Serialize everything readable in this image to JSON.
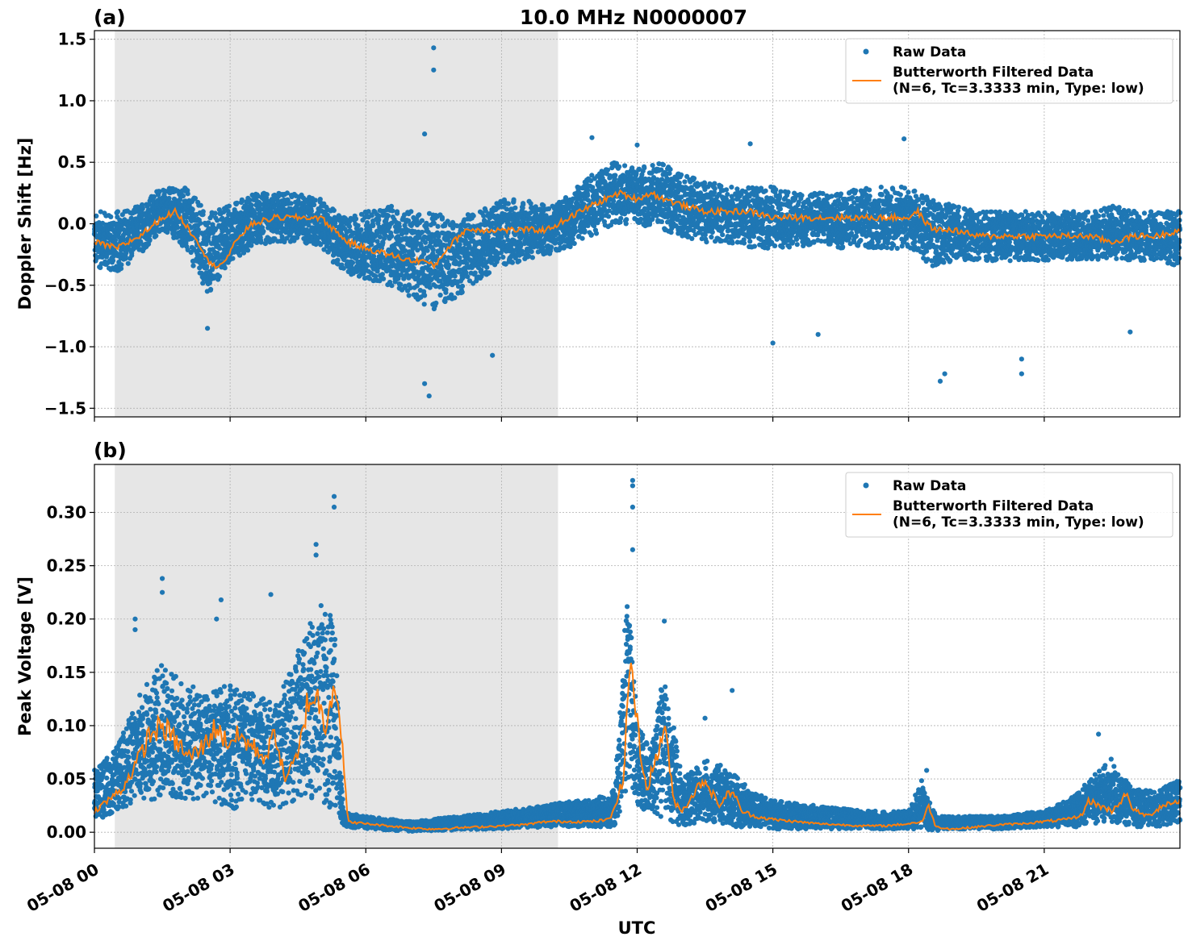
{
  "figure": {
    "title": "10.0 MHz N0000007",
    "xlabel": "UTC"
  },
  "colors": {
    "raw": "#1f77b4",
    "filtered": "#ff7f0e",
    "night_shade": "#e6e6e6",
    "grid": "#b0b0b0"
  },
  "chart_data": [
    {
      "panel": "(a)",
      "type": "scatter",
      "ylabel": "Doppler Shift [Hz]",
      "xlim": [
        "05-08 00:00",
        "05-08 24:00"
      ],
      "ylim": [
        -1.57,
        1.57
      ],
      "yticks": [
        -1.5,
        -1.0,
        -0.5,
        0.0,
        0.5,
        1.0,
        1.5
      ],
      "ytick_labels": [
        "−1.5",
        "−1.0",
        "−0.5",
        "0.0",
        "0.5",
        "1.0",
        "1.5"
      ],
      "xticks_hours": [
        0,
        3,
        6,
        9,
        12,
        15,
        18,
        21
      ],
      "xtick_labels": [
        "05-08 00",
        "05-08 03",
        "05-08 06",
        "05-08 09",
        "05-08 12",
        "05-08 15",
        "05-08 18",
        "05-08 21"
      ],
      "grid": true,
      "legend_position": "top-right",
      "legend": [
        "Raw Data",
        "Butterworth Filtered Data",
        "(N=6, Tc=3.3333 min, Type: low)"
      ],
      "shaded_region_hours": [
        0.45,
        10.25
      ],
      "series": [
        {
          "name": "Raw Data",
          "kind": "scatter",
          "band_hours": [
            0,
            0.5,
            1,
            1.5,
            2,
            2.5,
            3,
            3.5,
            4,
            4.5,
            5,
            5.5,
            6,
            6.5,
            7,
            7.5,
            8,
            8.5,
            9,
            9.5,
            10,
            10.5,
            11,
            11.5,
            12,
            12.5,
            13,
            13.5,
            14,
            14.5,
            15,
            15.5,
            16,
            16.5,
            17,
            17.5,
            18,
            18.5,
            19,
            19.5,
            20,
            20.5,
            21,
            21.5,
            22,
            22.5,
            23,
            23.5,
            24
          ],
          "band_low": [
            -0.35,
            -0.4,
            -0.25,
            -0.05,
            -0.2,
            -0.6,
            -0.3,
            -0.2,
            -0.15,
            -0.15,
            -0.2,
            -0.4,
            -0.45,
            -0.5,
            -0.6,
            -0.7,
            -0.6,
            -0.45,
            -0.35,
            -0.3,
            -0.25,
            -0.2,
            -0.1,
            0.0,
            0.0,
            -0.05,
            -0.1,
            -0.15,
            -0.15,
            -0.2,
            -0.2,
            -0.2,
            -0.15,
            -0.2,
            -0.2,
            -0.2,
            -0.2,
            -0.35,
            -0.3,
            -0.3,
            -0.3,
            -0.3,
            -0.3,
            -0.3,
            -0.3,
            -0.3,
            -0.3,
            -0.3,
            -0.35
          ],
          "band_high": [
            0.1,
            0.1,
            0.15,
            0.3,
            0.3,
            0.1,
            0.15,
            0.25,
            0.25,
            0.25,
            0.2,
            0.05,
            0.1,
            0.15,
            0.1,
            0.1,
            0.05,
            0.1,
            0.2,
            0.2,
            0.15,
            0.25,
            0.4,
            0.5,
            0.45,
            0.5,
            0.4,
            0.35,
            0.3,
            0.3,
            0.3,
            0.25,
            0.25,
            0.25,
            0.3,
            0.3,
            0.3,
            0.2,
            0.15,
            0.1,
            0.1,
            0.1,
            0.1,
            0.1,
            0.1,
            0.15,
            0.1,
            0.1,
            0.1
          ],
          "outliers": [
            [
              7.5,
              1.43
            ],
            [
              7.5,
              1.25
            ],
            [
              7.3,
              0.73
            ],
            [
              7.3,
              -1.3
            ],
            [
              7.4,
              -1.4
            ],
            [
              8.8,
              -1.07
            ],
            [
              2.5,
              -0.85
            ],
            [
              18.7,
              -1.28
            ],
            [
              18.8,
              -1.22
            ],
            [
              20.5,
              -1.22
            ],
            [
              20.5,
              -1.1
            ],
            [
              22.9,
              -0.88
            ],
            [
              16.0,
              -0.9
            ],
            [
              15.0,
              -0.97
            ],
            [
              11.0,
              0.7
            ],
            [
              17.9,
              0.69
            ],
            [
              12.0,
              0.64
            ],
            [
              14.5,
              0.65
            ]
          ]
        },
        {
          "name": "Butterworth Filtered Data",
          "kind": "line",
          "x_hours": [
            0,
            0.5,
            1,
            1.5,
            1.8,
            2,
            2.3,
            2.6,
            2.9,
            3.2,
            3.5,
            4,
            4.5,
            5,
            5.3,
            5.6,
            6,
            6.5,
            7,
            7.3,
            7.5,
            7.8,
            8.2,
            8.6,
            9,
            9.5,
            10,
            10.5,
            11,
            11.3,
            11.6,
            12,
            12.3,
            12.6,
            13,
            13.5,
            14,
            14.5,
            15,
            15.5,
            16,
            16.5,
            17,
            17.5,
            18,
            18.2,
            18.4,
            18.6,
            19,
            19.5,
            20,
            20.5,
            21,
            21.5,
            22,
            22.5,
            23,
            23.5,
            24
          ],
          "y": [
            -0.15,
            -0.2,
            -0.1,
            0.05,
            0.1,
            0.0,
            -0.15,
            -0.35,
            -0.3,
            -0.1,
            0.0,
            0.05,
            0.05,
            0.05,
            -0.05,
            -0.15,
            -0.2,
            -0.25,
            -0.3,
            -0.3,
            -0.35,
            -0.2,
            -0.05,
            -0.05,
            -0.05,
            -0.05,
            -0.05,
            0.05,
            0.15,
            0.2,
            0.25,
            0.2,
            0.25,
            0.2,
            0.15,
            0.1,
            0.1,
            0.1,
            0.05,
            0.05,
            0.05,
            0.05,
            0.05,
            0.05,
            0.05,
            0.1,
            0.0,
            -0.05,
            -0.05,
            -0.1,
            -0.1,
            -0.1,
            -0.1,
            -0.1,
            -0.1,
            -0.15,
            -0.1,
            -0.1,
            -0.05
          ]
        }
      ]
    },
    {
      "panel": "(b)",
      "type": "scatter",
      "ylabel": "Peak Voltage [V]",
      "xlim": [
        "05-08 00:00",
        "05-08 24:00"
      ],
      "ylim": [
        -0.015,
        0.345
      ],
      "yticks": [
        0.0,
        0.05,
        0.1,
        0.15,
        0.2,
        0.25,
        0.3
      ],
      "ytick_labels": [
        "0.00",
        "0.05",
        "0.10",
        "0.15",
        "0.20",
        "0.25",
        "0.30"
      ],
      "xticks_hours": [
        0,
        3,
        6,
        9,
        12,
        15,
        18,
        21
      ],
      "xtick_labels": [
        "05-08 00",
        "05-08 03",
        "05-08 06",
        "05-08 09",
        "05-08 12",
        "05-08 15",
        "05-08 18",
        "05-08 21"
      ],
      "grid": true,
      "legend_position": "top-right",
      "legend": [
        "Raw Data",
        "Butterworth Filtered Data",
        "(N=6, Tc=3.3333 min, Type: low)"
      ],
      "shaded_region_hours": [
        0.45,
        10.25
      ],
      "series": [
        {
          "name": "Raw Data",
          "kind": "scatter",
          "band_hours": [
            0,
            0.5,
            1,
            1.5,
            2,
            2.5,
            3,
            3.5,
            4,
            4.5,
            5,
            5.3,
            5.5,
            6,
            7,
            8,
            9,
            10,
            10.5,
            11,
            11.5,
            11.8,
            12,
            12.3,
            12.6,
            13,
            13.5,
            14,
            14.5,
            15,
            16,
            17,
            18,
            18.3,
            18.6,
            19,
            20,
            21,
            21.5,
            22,
            22.5,
            23,
            23.5,
            24
          ],
          "band_low": [
            0.01,
            0.02,
            0.03,
            0.03,
            0.03,
            0.03,
            0.02,
            0.03,
            0.02,
            0.03,
            0.03,
            0.02,
            0.005,
            0.003,
            0.001,
            0.002,
            0.003,
            0.005,
            0.005,
            0.005,
            0.005,
            0.04,
            0.02,
            0.02,
            0.01,
            0.005,
            0.01,
            0.005,
            0.005,
            0.003,
            0.003,
            0.003,
            0.003,
            0.002,
            0.001,
            0.003,
            0.003,
            0.005,
            0.005,
            0.005,
            0.01,
            0.005,
            0.005,
            0.01
          ],
          "band_high": [
            0.06,
            0.08,
            0.13,
            0.16,
            0.14,
            0.13,
            0.14,
            0.13,
            0.12,
            0.17,
            0.22,
            0.2,
            0.02,
            0.015,
            0.01,
            0.015,
            0.02,
            0.025,
            0.03,
            0.03,
            0.04,
            0.24,
            0.1,
            0.08,
            0.15,
            0.05,
            0.07,
            0.06,
            0.04,
            0.03,
            0.025,
            0.02,
            0.02,
            0.05,
            0.015,
            0.015,
            0.015,
            0.02,
            0.03,
            0.05,
            0.07,
            0.04,
            0.04,
            0.05
          ],
          "outliers": [
            [
              1.5,
              0.238
            ],
            [
              1.5,
              0.225
            ],
            [
              2.8,
              0.218
            ],
            [
              2.7,
              0.2
            ],
            [
              3.9,
              0.223
            ],
            [
              4.9,
              0.27
            ],
            [
              4.9,
              0.26
            ],
            [
              5.3,
              0.315
            ],
            [
              5.3,
              0.305
            ],
            [
              11.9,
              0.33
            ],
            [
              11.9,
              0.325
            ],
            [
              11.9,
              0.305
            ],
            [
              11.9,
              0.265
            ],
            [
              12.6,
              0.198
            ],
            [
              13.5,
              0.107
            ],
            [
              14.1,
              0.133
            ],
            [
              18.4,
              0.058
            ],
            [
              22.2,
              0.092
            ],
            [
              0.9,
              0.2
            ],
            [
              0.9,
              0.19
            ]
          ]
        },
        {
          "name": "Butterworth Filtered Data",
          "kind": "line",
          "x_hours": [
            0,
            0.3,
            0.6,
            1,
            1.2,
            1.5,
            1.8,
            2.1,
            2.4,
            2.7,
            2.9,
            3.2,
            3.5,
            3.8,
            4.0,
            4.2,
            4.5,
            4.7,
            4.9,
            5.1,
            5.3,
            5.45,
            5.6,
            6,
            6.5,
            7,
            7.5,
            8,
            8.5,
            9,
            9.5,
            10,
            10.5,
            11,
            11.4,
            11.7,
            11.85,
            12.0,
            12.2,
            12.5,
            12.6,
            12.8,
            13,
            13.3,
            13.5,
            13.8,
            14.1,
            14.3,
            14.6,
            15,
            15.5,
            16,
            16.5,
            17,
            17.5,
            18,
            18.3,
            18.45,
            18.6,
            19,
            19.5,
            20,
            20.5,
            21,
            21.5,
            21.8,
            22.0,
            22.2,
            22.5,
            22.8,
            23,
            23.3,
            23.6,
            24
          ],
          "y": [
            0.02,
            0.03,
            0.04,
            0.07,
            0.09,
            0.1,
            0.085,
            0.07,
            0.08,
            0.1,
            0.085,
            0.09,
            0.08,
            0.07,
            0.095,
            0.05,
            0.07,
            0.12,
            0.13,
            0.1,
            0.145,
            0.1,
            0.01,
            0.008,
            0.006,
            0.004,
            0.003,
            0.004,
            0.005,
            0.006,
            0.007,
            0.01,
            0.01,
            0.01,
            0.012,
            0.05,
            0.17,
            0.1,
            0.04,
            0.08,
            0.105,
            0.03,
            0.02,
            0.04,
            0.05,
            0.025,
            0.04,
            0.02,
            0.015,
            0.012,
            0.01,
            0.008,
            0.007,
            0.006,
            0.006,
            0.008,
            0.01,
            0.025,
            0.005,
            0.003,
            0.005,
            0.007,
            0.008,
            0.01,
            0.012,
            0.015,
            0.03,
            0.025,
            0.02,
            0.035,
            0.02,
            0.015,
            0.025,
            0.03
          ]
        }
      ]
    }
  ]
}
